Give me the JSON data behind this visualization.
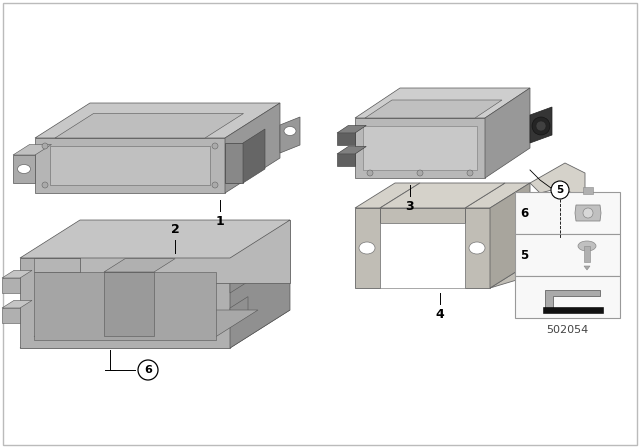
{
  "background_color": "#ffffff",
  "border_color": "#cccccc",
  "diagram_number": "502054",
  "comp1_color_front": "#b8b8b8",
  "comp1_color_top": "#d0d0d0",
  "comp1_color_side": "#989898",
  "comp2_color_front": "#b0b0b0",
  "comp2_color_top": "#c8c8c8",
  "comp2_color_side": "#909090",
  "comp3_color_front": "#b8b8b8",
  "comp3_color_top": "#d0d0d0",
  "comp3_color_side": "#989898",
  "comp4_color": "#c0bdb5",
  "comp4_color_dark": "#a8a59d",
  "comp4_color_light": "#d8d5cd"
}
